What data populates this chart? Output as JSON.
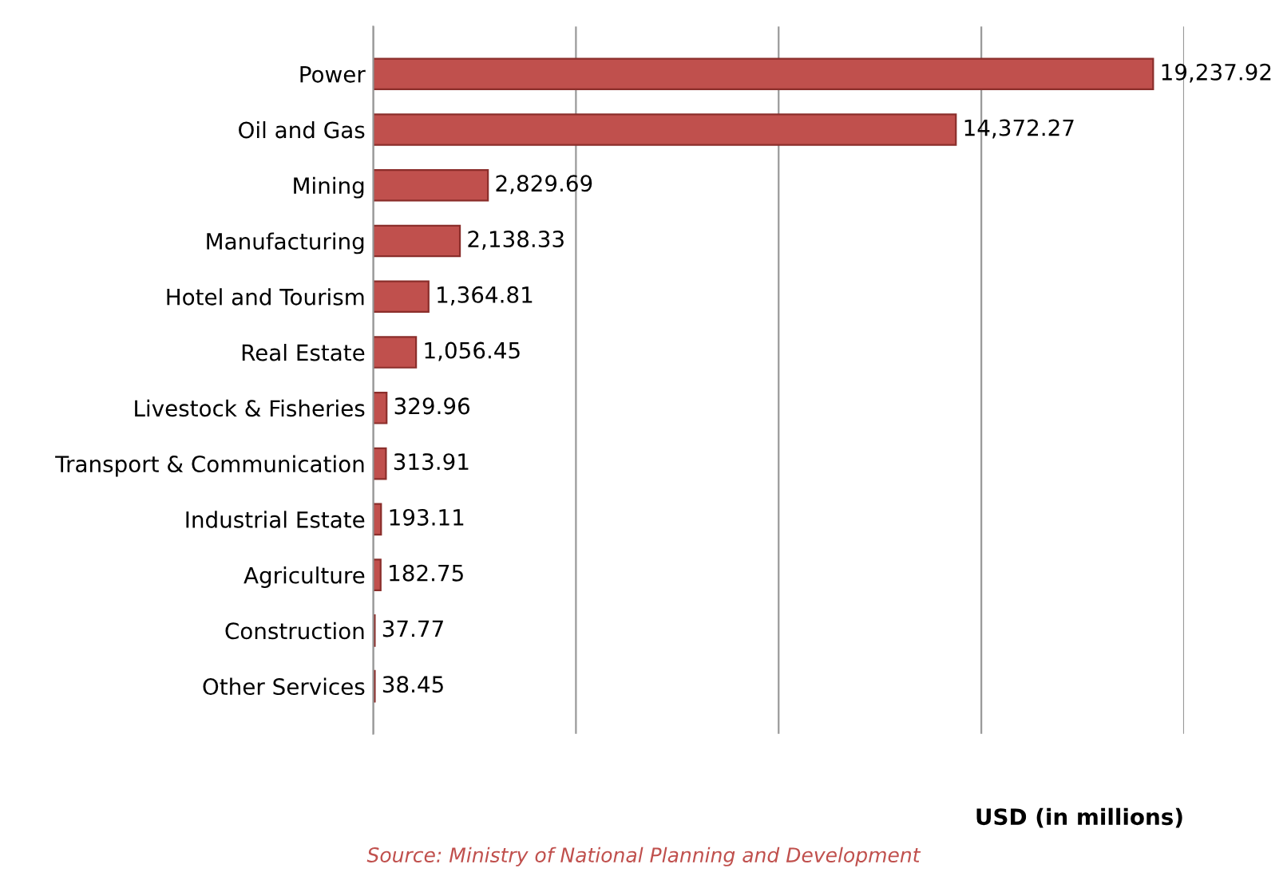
{
  "chart_data": {
    "type": "bar",
    "orientation": "horizontal",
    "categories": [
      "Power",
      "Oil and Gas",
      "Mining",
      "Manufacturing",
      "Hotel and Tourism",
      "Real Estate",
      "Livestock & Fisheries",
      "Transport & Communication",
      "Industrial Estate",
      "Agriculture",
      "Construction",
      "Other Services"
    ],
    "values": [
      19237.92,
      14372.27,
      2829.69,
      2138.33,
      1364.81,
      1056.45,
      329.96,
      313.91,
      193.11,
      182.75,
      37.77,
      38.45
    ],
    "value_labels": [
      "19,237.92",
      "14,372.27",
      "2,829.69",
      "2,138.33",
      "1,364.81",
      "1,056.45",
      "329.96",
      "313.91",
      "193.11",
      "182.75",
      "37.77",
      "38.45"
    ],
    "color": "#c0504d",
    "xlim": [
      0,
      20000
    ],
    "xticks": [
      {
        "value": 0,
        "label": null
      },
      {
        "value": 5000,
        "label": null
      },
      {
        "value": 10000,
        "label": null
      },
      {
        "value": 15000,
        "label": null
      },
      {
        "value": 20000,
        "label": null
      }
    ],
    "grid": "x",
    "xlabel": "USD (in millions)",
    "annotations": [
      "Source: Ministry of National Planning and Development"
    ]
  }
}
